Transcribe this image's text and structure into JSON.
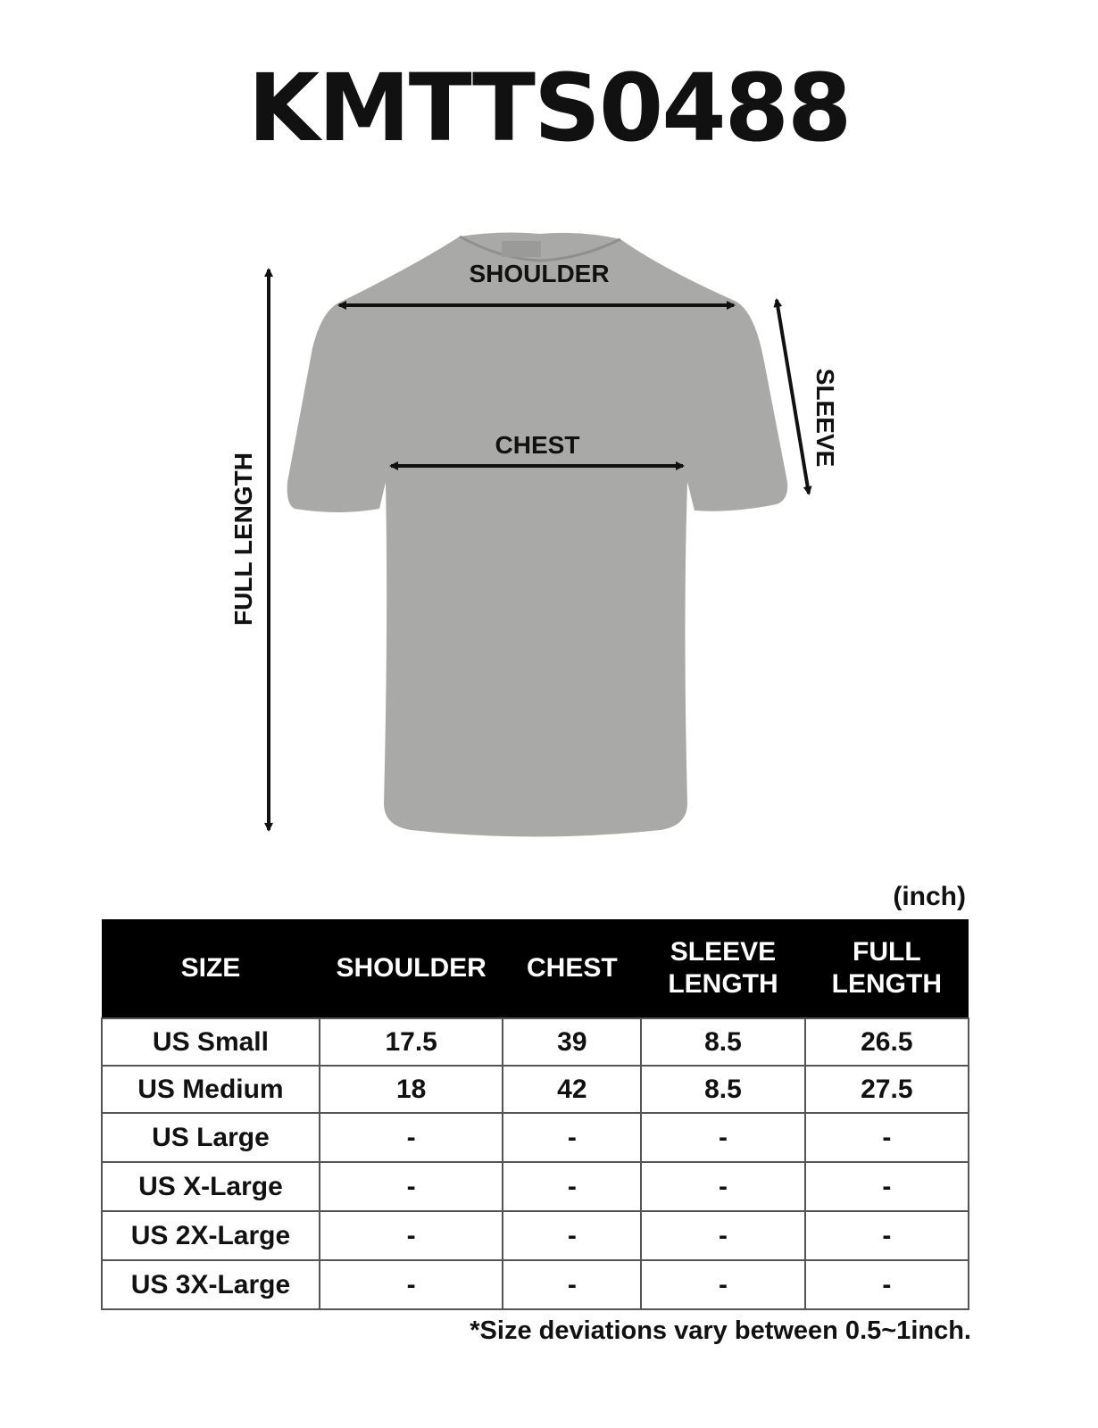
{
  "title": "KMTTS0488",
  "garment": {
    "labels": {
      "shoulder": "SHOULDER",
      "chest": "CHEST",
      "sleeve": "SLEEVE",
      "full_length": "FULL LENGTH"
    },
    "shirt_color": "#a9aaa7"
  },
  "unit": "(inch)",
  "table": {
    "headers": [
      "SIZE",
      "SHOULDER",
      "CHEST",
      "SLEEVE LENGTH",
      "FULL LENGTH"
    ],
    "rows": [
      [
        "US Small",
        "17.5",
        "39",
        "8.5",
        "26.5"
      ],
      [
        "US Medium",
        "18",
        "42",
        "8.5",
        "27.5"
      ],
      [
        "US Large",
        "-",
        "-",
        "-",
        "-"
      ],
      [
        "US X-Large",
        "-",
        "-",
        "-",
        "-"
      ],
      [
        "US 2X-Large",
        "-",
        "-",
        "-",
        "-"
      ],
      [
        "US 3X-Large",
        "-",
        "-",
        "-",
        "-"
      ]
    ]
  },
  "note": "*Size deviations vary between 0.5~1inch."
}
